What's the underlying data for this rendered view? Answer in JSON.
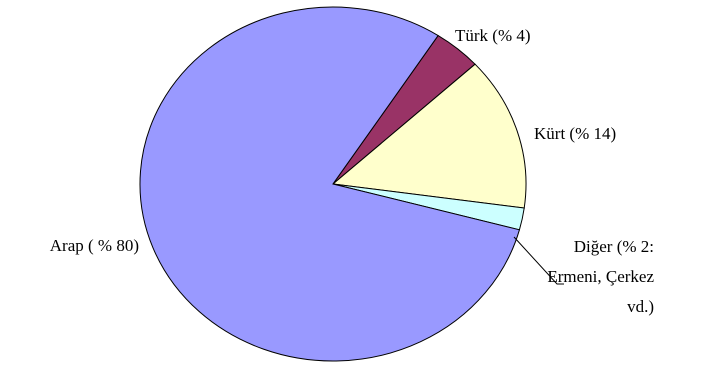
{
  "chart_data": {
    "type": "pie",
    "title": "",
    "slices": [
      {
        "label": "Türk (% 4)",
        "value": 4,
        "color": "#993366"
      },
      {
        "label": "Kürt (% 14)",
        "value": 14,
        "color": "#FFFFCC"
      },
      {
        "label": "Diğer (% 2: Ermeni, Çerkez vd.)",
        "value": 2,
        "color": "#CCFFFF"
      },
      {
        "label": "Arap ( % 80)",
        "value": 80,
        "color": "#9999FF"
      }
    ],
    "legend": "none",
    "data_labels": true
  }
}
